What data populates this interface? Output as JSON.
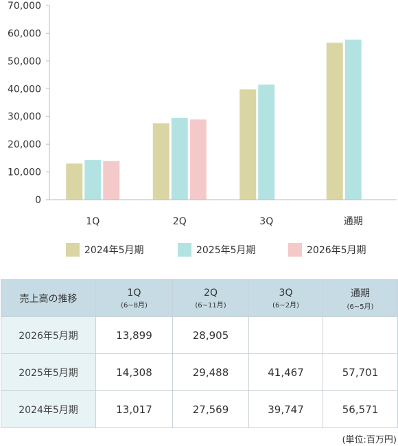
{
  "chart_data": {
    "type": "bar",
    "categories": [
      "1Q",
      "2Q",
      "3Q",
      "通期"
    ],
    "series": [
      {
        "name": "2024年5月期",
        "values": [
          13017,
          27569,
          39747,
          56571
        ]
      },
      {
        "name": "2025年5月期",
        "values": [
          14308,
          29488,
          41467,
          57701
        ]
      },
      {
        "name": "2026年5月期",
        "values": [
          13899,
          28905,
          null,
          null
        ]
      }
    ],
    "ylim": [
      0,
      70000
    ],
    "yticks": [
      0,
      10000,
      20000,
      30000,
      40000,
      50000,
      60000,
      70000
    ],
    "ytick_labels": [
      "0",
      "10,000",
      "20,000",
      "30,000",
      "40,000",
      "50,000",
      "60,000",
      "70,000"
    ],
    "xtick_labels": [
      "1Q",
      "2Q",
      "3Q",
      "通期"
    ],
    "legend_position": "bottom",
    "grid": false,
    "colors": {
      "2024年5月期": "#d9d6a4",
      "2025年5月期": "#b2e3e2",
      "2026年5月期": "#f4c9ca"
    }
  },
  "table": {
    "corner": "売上高の推移",
    "headers": [
      {
        "label": "1Q",
        "sub": "(6~8月)"
      },
      {
        "label": "2Q",
        "sub": "(6~11月)"
      },
      {
        "label": "3Q",
        "sub": "(6~2月)"
      },
      {
        "label": "通期",
        "sub": "(6~5月)"
      }
    ],
    "rows": [
      {
        "label": "2026年5月期",
        "cells": [
          "13,899",
          "28,905",
          "",
          ""
        ]
      },
      {
        "label": "2025年5月期",
        "cells": [
          "14,308",
          "29,488",
          "41,467",
          "57,701"
        ]
      },
      {
        "label": "2024年5月期",
        "cells": [
          "13,017",
          "27,569",
          "39,747",
          "56,571"
        ]
      }
    ]
  },
  "unit_note": "(単位:百万円)"
}
